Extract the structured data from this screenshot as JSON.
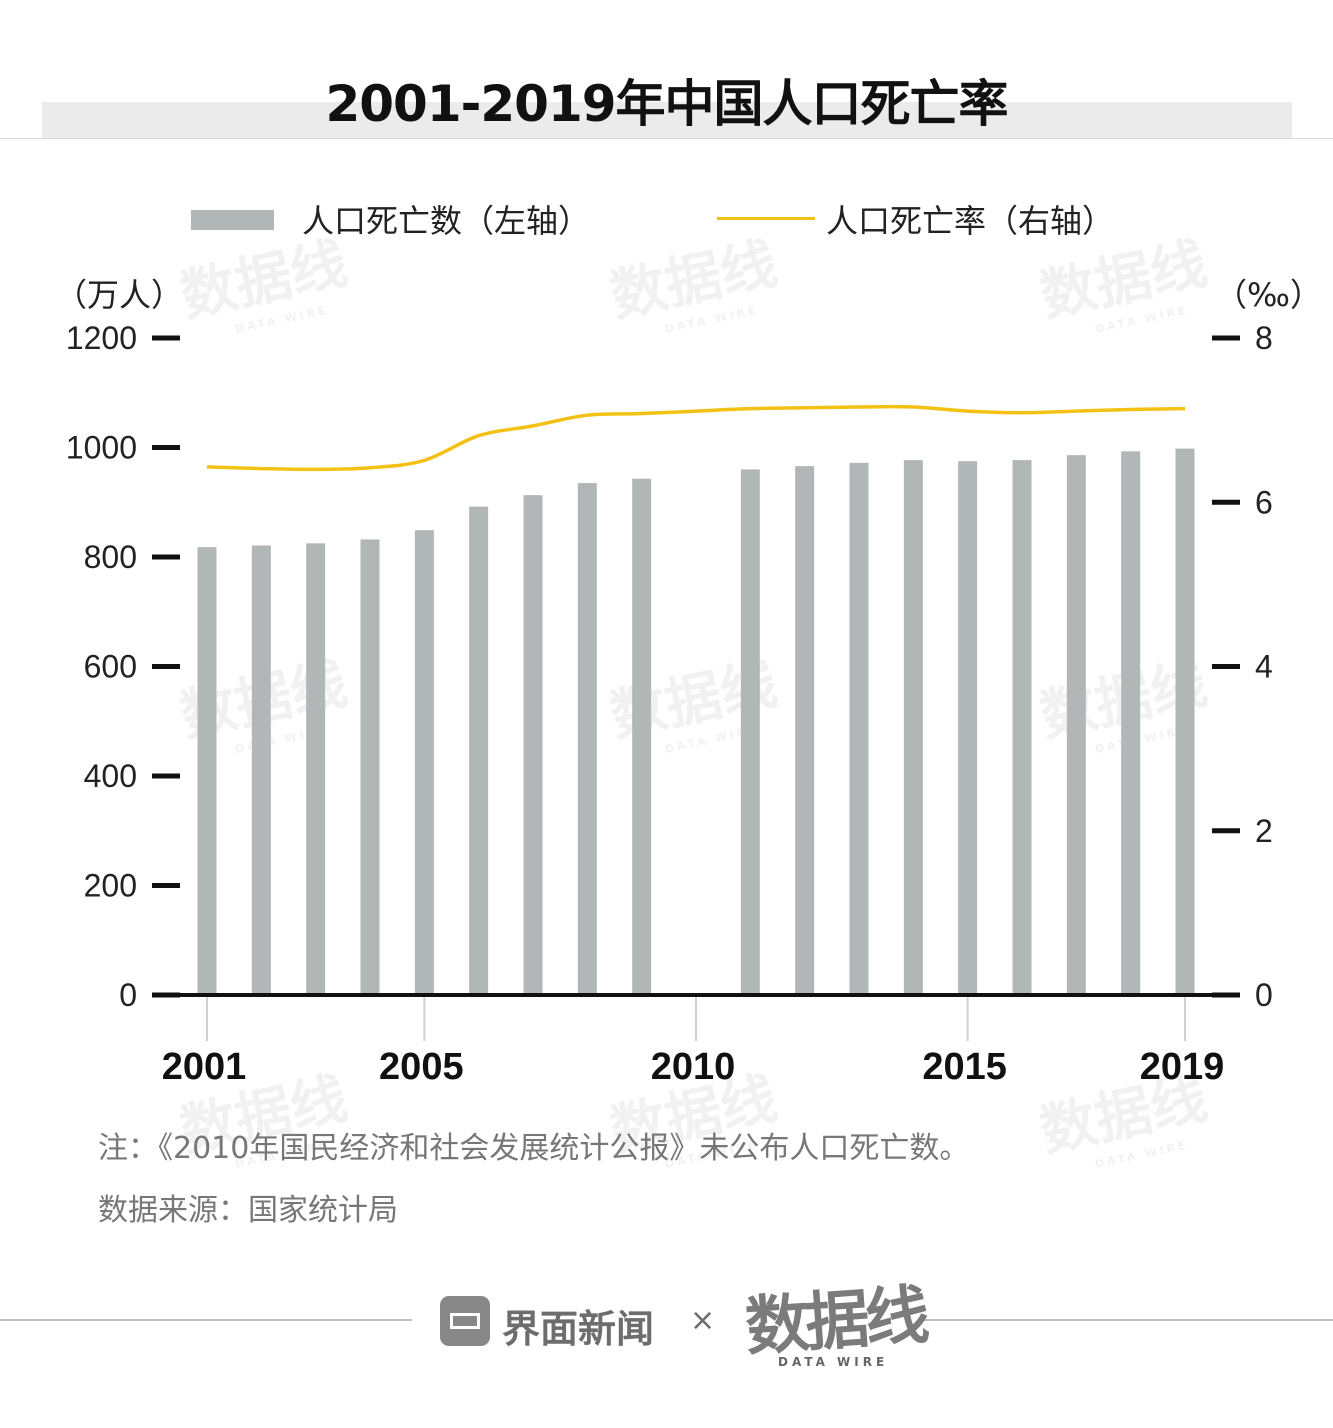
{
  "title": "2001-2019年中国人口死亡率",
  "legend": {
    "bar_label": "人口死亡数（左轴）",
    "line_label": "人口死亡率（右轴）"
  },
  "units": {
    "left": "（万人）",
    "right": "（‰）"
  },
  "notes": {
    "note": "注：《2010年国民经济和社会发展统计公报》未公布人口死亡数。",
    "source": "数据来源：国家统计局"
  },
  "watermark": {
    "text": "数据线",
    "sub": "DATA WIRE"
  },
  "footer": {
    "brand": "界面新闻",
    "times": "×",
    "logo_text": "数据线",
    "logo_sub": "DATA WIRE",
    "brand_icon": "jiemian-logo-icon"
  },
  "colors": {
    "bar": "#b1b6b7",
    "line": "#f2c114",
    "axis": "#111111"
  },
  "chart_data": {
    "type": "bar",
    "x": [
      2001,
      2002,
      2003,
      2004,
      2005,
      2006,
      2007,
      2008,
      2009,
      2010,
      2011,
      2012,
      2013,
      2014,
      2015,
      2016,
      2017,
      2018,
      2019
    ],
    "x_tick_labels": [
      "2001",
      "2005",
      "2010",
      "2015",
      "2019"
    ],
    "y_left": {
      "ticks": [
        0,
        200,
        400,
        600,
        800,
        1000,
        1200
      ],
      "ylim": [
        0,
        1200
      ]
    },
    "y_right": {
      "ticks": [
        0,
        2,
        4,
        6,
        8
      ],
      "ylim": [
        0,
        8
      ]
    },
    "series": [
      {
        "type": "bar",
        "axis": "left",
        "name": "人口死亡数（左轴）",
        "values": [
          818,
          821,
          825,
          832,
          849,
          892,
          913,
          935,
          943,
          null,
          960,
          966,
          972,
          977,
          975,
          977,
          986,
          993,
          998
        ]
      },
      {
        "type": "line",
        "axis": "right",
        "name": "人口死亡率（右轴）",
        "values": [
          6.43,
          6.41,
          6.4,
          6.42,
          6.51,
          6.81,
          6.93,
          7.06,
          7.08,
          7.11,
          7.14,
          7.15,
          7.16,
          7.16,
          7.11,
          7.09,
          7.11,
          7.13,
          7.14
        ]
      }
    ],
    "grid": false,
    "legend_position": "top"
  }
}
